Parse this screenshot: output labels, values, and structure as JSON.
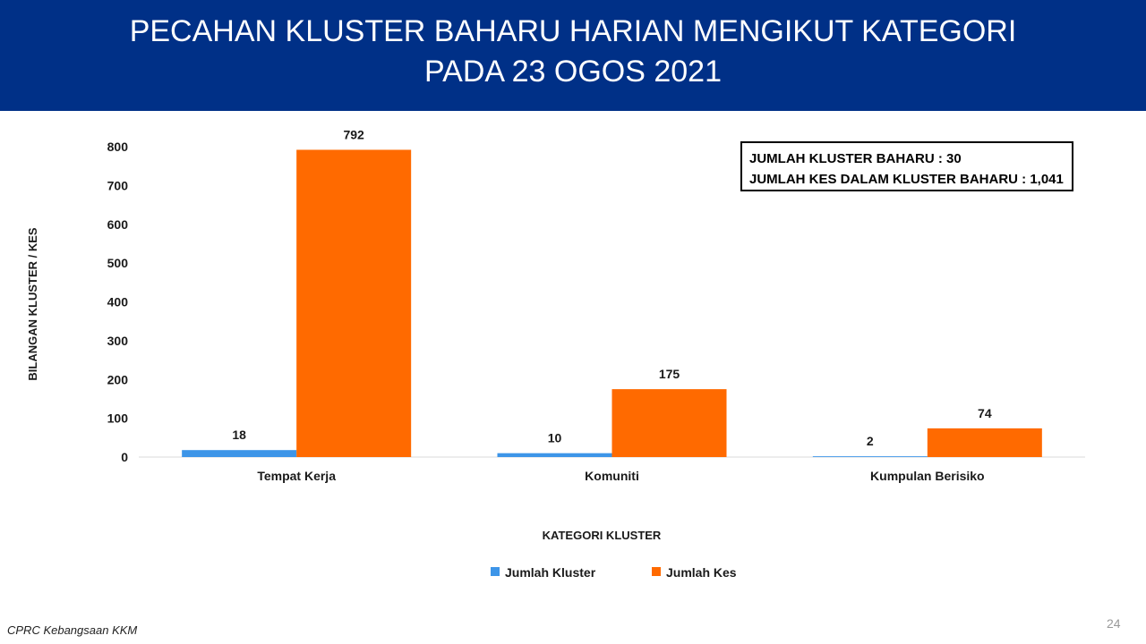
{
  "header": {
    "title_line1": "PECAHAN KLUSTER BAHARU HARIAN MENGIKUT KATEGORI",
    "title_line2": "PADA 23 OGOS 2021"
  },
  "summary": {
    "line1": "JUMLAH KLUSTER BAHARU : 30",
    "line2": "JUMLAH KES DALAM KLUSTER BAHARU : 1,041"
  },
  "chart_data": {
    "type": "bar",
    "title": "PECAHAN KLUSTER BAHARU HARIAN MENGIKUT KATEGORI PADA 23 OGOS 2021",
    "xlabel": "KATEGORI KLUSTER",
    "ylabel": "BILANGAN KLUSTER / KES",
    "categories": [
      "Tempat Kerja",
      "Komuniti",
      "Kumpulan Berisiko"
    ],
    "series": [
      {
        "name": "Jumlah Kluster",
        "values": [
          18,
          10,
          2
        ],
        "color": "#3d95e8"
      },
      {
        "name": "Jumlah Kes",
        "values": [
          792,
          175,
          74
        ],
        "color": "#ff6a00"
      }
    ],
    "ylim": [
      0,
      800
    ],
    "yticks": [
      0,
      100,
      200,
      300,
      400,
      500,
      600,
      700,
      800
    ],
    "grid": false,
    "legend": "bottom"
  },
  "footer": {
    "source": "CPRC Kebangsaan KKM",
    "page_number": "24"
  }
}
